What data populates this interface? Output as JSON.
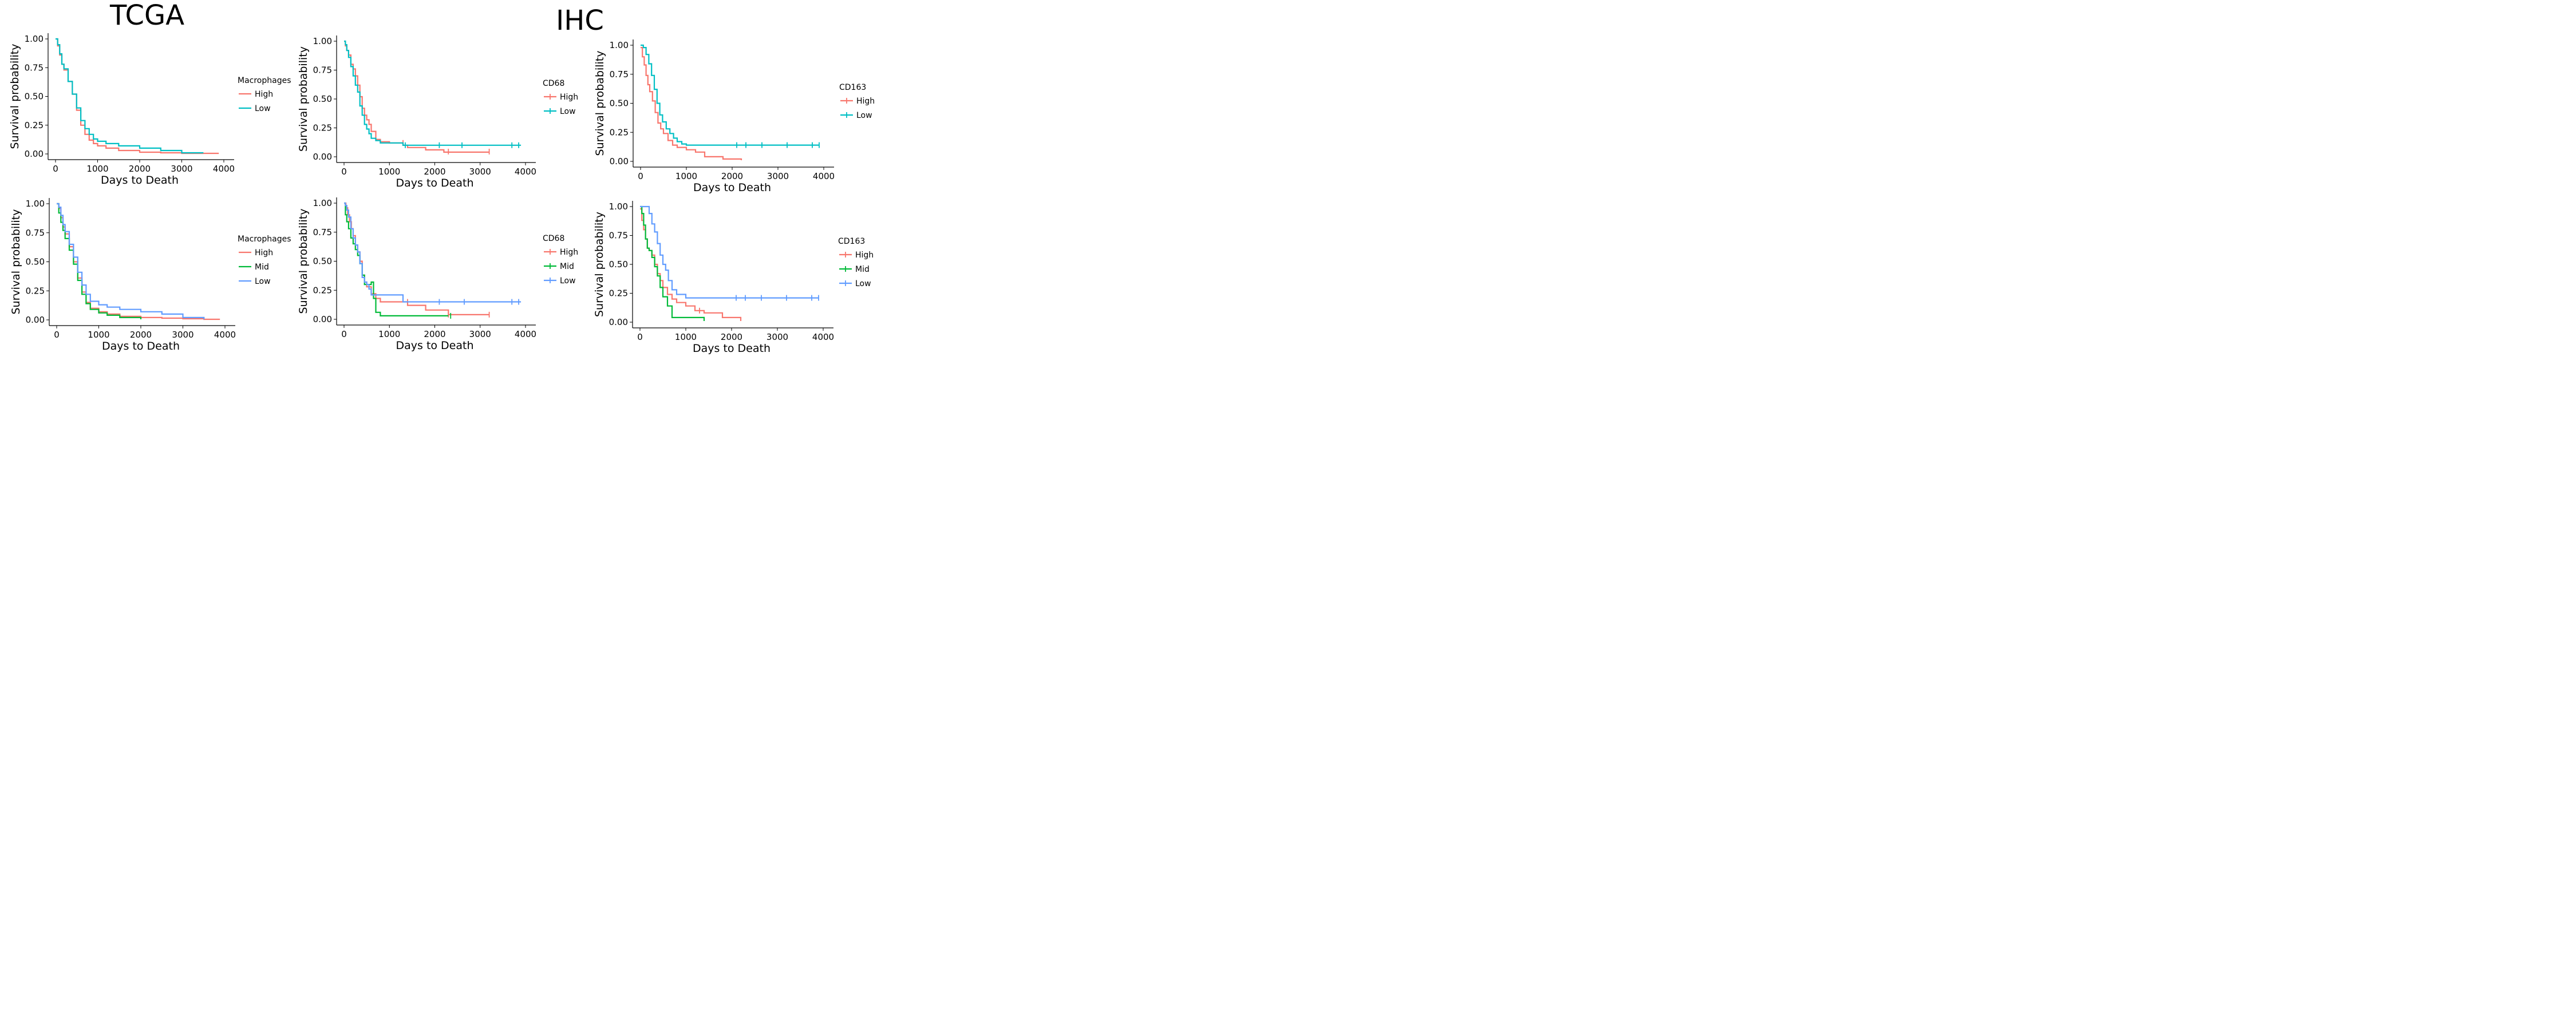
{
  "section_titles": [
    "TCGA",
    "IHC"
  ],
  "chart_data": [
    {
      "type": "line",
      "xlabel": "Days to Death",
      "ylabel": "Survival probability",
      "xlim": [
        0,
        4000
      ],
      "ylim": [
        0,
        1
      ],
      "xticks": [
        0,
        1000,
        2000,
        3000,
        4000
      ],
      "yticks": [
        "0.00",
        "0.25",
        "0.50",
        "0.75",
        "1.00"
      ],
      "legend_title": "Macrophages",
      "grid": false,
      "censor_marks": false,
      "series": [
        {
          "name": "High",
          "color": "#F8766D",
          "x": [
            0,
            50,
            100,
            150,
            200,
            300,
            400,
            500,
            600,
            700,
            800,
            900,
            1000,
            1200,
            1500,
            2000,
            2500,
            3000,
            3500,
            3880
          ],
          "y": [
            1.0,
            0.94,
            0.86,
            0.78,
            0.73,
            0.63,
            0.52,
            0.38,
            0.25,
            0.17,
            0.12,
            0.09,
            0.07,
            0.05,
            0.03,
            0.015,
            0.01,
            0.005,
            0.005,
            0.005
          ]
        },
        {
          "name": "Low",
          "color": "#00BFC4",
          "x": [
            0,
            50,
            100,
            150,
            200,
            300,
            400,
            500,
            600,
            700,
            800,
            900,
            1000,
            1200,
            1500,
            2000,
            2500,
            3000,
            3500
          ],
          "y": [
            1.0,
            0.95,
            0.87,
            0.78,
            0.74,
            0.63,
            0.52,
            0.4,
            0.29,
            0.22,
            0.17,
            0.13,
            0.11,
            0.09,
            0.07,
            0.05,
            0.03,
            0.01,
            0.005
          ]
        }
      ]
    },
    {
      "type": "line",
      "xlabel": "Days to Death",
      "ylabel": "Survival probability",
      "xlim": [
        0,
        4000
      ],
      "ylim": [
        0,
        1
      ],
      "xticks": [
        0,
        1000,
        2000,
        3000,
        4000
      ],
      "yticks": [
        "0.00",
        "0.25",
        "0.50",
        "0.75",
        "1.00"
      ],
      "legend_title": "CD68",
      "grid": false,
      "censor_marks": true,
      "series": [
        {
          "name": "High",
          "color": "#F8766D",
          "x": [
            0,
            30,
            60,
            100,
            150,
            200,
            250,
            300,
            350,
            400,
            450,
            500,
            550,
            600,
            700,
            800,
            1000,
            1300,
            1400,
            1800,
            2200,
            3200
          ],
          "y": [
            1.0,
            0.96,
            0.92,
            0.88,
            0.8,
            0.76,
            0.7,
            0.62,
            0.52,
            0.42,
            0.36,
            0.32,
            0.28,
            0.22,
            0.15,
            0.13,
            0.12,
            0.1,
            0.08,
            0.06,
            0.04,
            0.04
          ],
          "censor": [
            [
              1300,
              0.12
            ],
            [
              2300,
              0.045
            ],
            [
              3200,
              0.045
            ]
          ]
        },
        {
          "name": "Low",
          "color": "#00BFC4",
          "x": [
            0,
            30,
            60,
            100,
            150,
            200,
            250,
            300,
            350,
            400,
            450,
            500,
            550,
            600,
            700,
            800,
            1000,
            1300,
            3900
          ],
          "y": [
            1.0,
            0.97,
            0.92,
            0.86,
            0.78,
            0.7,
            0.62,
            0.56,
            0.44,
            0.36,
            0.28,
            0.24,
            0.2,
            0.16,
            0.14,
            0.12,
            0.12,
            0.1,
            0.1
          ],
          "censor": [
            [
              1350,
              0.1
            ],
            [
              2100,
              0.1
            ],
            [
              2600,
              0.1
            ],
            [
              3700,
              0.1
            ],
            [
              3850,
              0.1
            ]
          ]
        }
      ]
    },
    {
      "type": "line",
      "xlabel": "Days to Death",
      "ylabel": "Survival probability",
      "xlim": [
        0,
        4000
      ],
      "ylim": [
        0,
        1
      ],
      "xticks": [
        0,
        1000,
        2000,
        3000,
        4000
      ],
      "yticks": [
        "0.00",
        "0.25",
        "0.50",
        "0.75",
        "1.00"
      ],
      "legend_title": "CD163",
      "grid": false,
      "censor_marks": true,
      "series": [
        {
          "name": "High",
          "color": "#F8766D",
          "x": [
            0,
            40,
            80,
            120,
            160,
            200,
            260,
            320,
            380,
            440,
            500,
            600,
            700,
            800,
            1000,
            1200,
            1400,
            1800,
            2200
          ],
          "y": [
            0.98,
            0.9,
            0.83,
            0.74,
            0.66,
            0.6,
            0.52,
            0.42,
            0.33,
            0.28,
            0.24,
            0.18,
            0.14,
            0.12,
            0.1,
            0.08,
            0.04,
            0.02,
            0.01
          ]
        },
        {
          "name": "Low",
          "color": "#00BFC4",
          "x": [
            0,
            60,
            120,
            180,
            240,
            300,
            360,
            420,
            480,
            560,
            640,
            720,
            800,
            900,
            1000,
            3900
          ],
          "y": [
            1.0,
            0.98,
            0.92,
            0.84,
            0.74,
            0.62,
            0.5,
            0.4,
            0.34,
            0.28,
            0.24,
            0.2,
            0.17,
            0.15,
            0.14,
            0.14
          ],
          "censor": [
            [
              2100,
              0.14
            ],
            [
              2300,
              0.14
            ],
            [
              2650,
              0.14
            ],
            [
              3200,
              0.14
            ],
            [
              3750,
              0.14
            ],
            [
              3900,
              0.14
            ]
          ]
        }
      ]
    },
    {
      "type": "line",
      "xlabel": "Days to Death",
      "ylabel": "Survival probability",
      "xlim": [
        0,
        4000
      ],
      "ylim": [
        0,
        1
      ],
      "xticks": [
        0,
        1000,
        2000,
        3000,
        4000
      ],
      "yticks": [
        "0.00",
        "0.25",
        "0.50",
        "0.75",
        "1.00"
      ],
      "legend_title": "Macrophages",
      "grid": false,
      "censor_marks": false,
      "series": [
        {
          "name": "High",
          "color": "#F8766D",
          "x": [
            0,
            50,
            100,
            150,
            200,
            300,
            400,
            500,
            600,
            700,
            800,
            1000,
            1200,
            1500,
            2000,
            2500,
            3000,
            3500,
            3880
          ],
          "y": [
            1.0,
            0.96,
            0.88,
            0.8,
            0.74,
            0.63,
            0.5,
            0.36,
            0.24,
            0.15,
            0.1,
            0.07,
            0.05,
            0.03,
            0.02,
            0.015,
            0.01,
            0.005,
            0.005
          ]
        },
        {
          "name": "Mid",
          "color": "#00BA38",
          "x": [
            0,
            50,
            100,
            150,
            200,
            300,
            400,
            500,
            600,
            700,
            800,
            1000,
            1200,
            1500,
            2000
          ],
          "y": [
            1.0,
            0.92,
            0.84,
            0.77,
            0.7,
            0.6,
            0.48,
            0.34,
            0.22,
            0.14,
            0.09,
            0.06,
            0.04,
            0.02,
            0.005
          ]
        },
        {
          "name": "Low",
          "color": "#619CFF",
          "x": [
            0,
            50,
            100,
            150,
            200,
            300,
            400,
            500,
            600,
            700,
            800,
            1000,
            1200,
            1500,
            2000,
            2500,
            3000,
            3500
          ],
          "y": [
            1.0,
            0.97,
            0.9,
            0.82,
            0.76,
            0.65,
            0.54,
            0.41,
            0.3,
            0.22,
            0.16,
            0.13,
            0.11,
            0.09,
            0.07,
            0.05,
            0.02,
            0.005
          ]
        }
      ]
    },
    {
      "type": "line",
      "xlabel": "Days to Death",
      "ylabel": "Survival probability",
      "xlim": [
        0,
        4000
      ],
      "ylim": [
        0,
        1
      ],
      "xticks": [
        0,
        1000,
        2000,
        3000,
        4000
      ],
      "yticks": [
        "0.00",
        "0.25",
        "0.50",
        "0.75",
        "1.00"
      ],
      "legend_title": "CD68",
      "grid": false,
      "censor_marks": true,
      "series": [
        {
          "name": "High",
          "color": "#F8766D",
          "x": [
            0,
            40,
            80,
            120,
            160,
            200,
            250,
            300,
            350,
            400,
            450,
            500,
            600,
            700,
            800,
            1000,
            1400,
            1800,
            2300,
            3200
          ],
          "y": [
            1.0,
            0.96,
            0.9,
            0.84,
            0.78,
            0.72,
            0.64,
            0.58,
            0.5,
            0.38,
            0.32,
            0.28,
            0.22,
            0.18,
            0.15,
            0.15,
            0.12,
            0.08,
            0.04,
            0.04
          ],
          "censor": [
            [
              1400,
              0.15
            ],
            [
              2300,
              0.04
            ],
            [
              3200,
              0.04
            ]
          ]
        },
        {
          "name": "Mid",
          "color": "#00BA38",
          "x": [
            0,
            30,
            60,
            100,
            150,
            200,
            250,
            300,
            350,
            400,
            450,
            500,
            600,
            650,
            700,
            800,
            1000,
            2300
          ],
          "y": [
            1.0,
            0.9,
            0.84,
            0.78,
            0.7,
            0.65,
            0.6,
            0.55,
            0.48,
            0.38,
            0.3,
            0.3,
            0.32,
            0.18,
            0.06,
            0.03,
            0.03,
            0.03
          ],
          "censor": [
            [
              2350,
              0.03
            ]
          ]
        },
        {
          "name": "Low",
          "color": "#619CFF",
          "x": [
            0,
            30,
            60,
            100,
            150,
            200,
            250,
            300,
            350,
            400,
            450,
            500,
            550,
            600,
            700,
            1000,
            1300,
            3900
          ],
          "y": [
            1.0,
            0.98,
            0.94,
            0.88,
            0.78,
            0.7,
            0.64,
            0.58,
            0.48,
            0.36,
            0.32,
            0.3,
            0.26,
            0.21,
            0.21,
            0.21,
            0.15,
            0.15
          ],
          "censor": [
            [
              2100,
              0.15
            ],
            [
              2650,
              0.15
            ],
            [
              3700,
              0.15
            ],
            [
              3850,
              0.15
            ]
          ]
        }
      ]
    },
    {
      "type": "line",
      "xlabel": "Days to Death",
      "ylabel": "Survival probability",
      "xlim": [
        0,
        4000
      ],
      "ylim": [
        0,
        1
      ],
      "xticks": [
        0,
        1000,
        2000,
        3000,
        4000
      ],
      "yticks": [
        "0.00",
        "0.25",
        "0.50",
        "0.75",
        "1.00"
      ],
      "legend_title": "CD163",
      "grid": false,
      "censor_marks": true,
      "series": [
        {
          "name": "High",
          "color": "#F8766D",
          "x": [
            0,
            40,
            80,
            120,
            160,
            200,
            260,
            320,
            380,
            440,
            500,
            600,
            700,
            800,
            1000,
            1200,
            1400,
            1800,
            2200
          ],
          "y": [
            0.98,
            0.88,
            0.8,
            0.72,
            0.64,
            0.62,
            0.58,
            0.5,
            0.42,
            0.36,
            0.3,
            0.24,
            0.2,
            0.17,
            0.14,
            0.1,
            0.08,
            0.04,
            0.01
          ],
          "censor": [
            [
              1300,
              0.1
            ]
          ]
        },
        {
          "name": "Mid",
          "color": "#00BA38",
          "x": [
            0,
            40,
            80,
            120,
            160,
            200,
            260,
            320,
            380,
            440,
            500,
            600,
            700,
            800,
            1000,
            1400
          ],
          "y": [
            1.0,
            0.94,
            0.84,
            0.72,
            0.64,
            0.62,
            0.56,
            0.48,
            0.4,
            0.3,
            0.22,
            0.14,
            0.04,
            0.04,
            0.04,
            0.01
          ]
        },
        {
          "name": "Low",
          "color": "#619CFF",
          "x": [
            0,
            60,
            120,
            200,
            260,
            320,
            380,
            440,
            500,
            560,
            620,
            700,
            800,
            1000,
            3900
          ],
          "y": [
            1.0,
            1.0,
            1.0,
            0.94,
            0.85,
            0.78,
            0.68,
            0.58,
            0.5,
            0.45,
            0.36,
            0.28,
            0.24,
            0.21,
            0.21
          ],
          "censor": [
            [
              2100,
              0.21
            ],
            [
              2300,
              0.21
            ],
            [
              2650,
              0.21
            ],
            [
              3200,
              0.21
            ],
            [
              3750,
              0.21
            ],
            [
              3900,
              0.21
            ]
          ]
        }
      ]
    }
  ]
}
